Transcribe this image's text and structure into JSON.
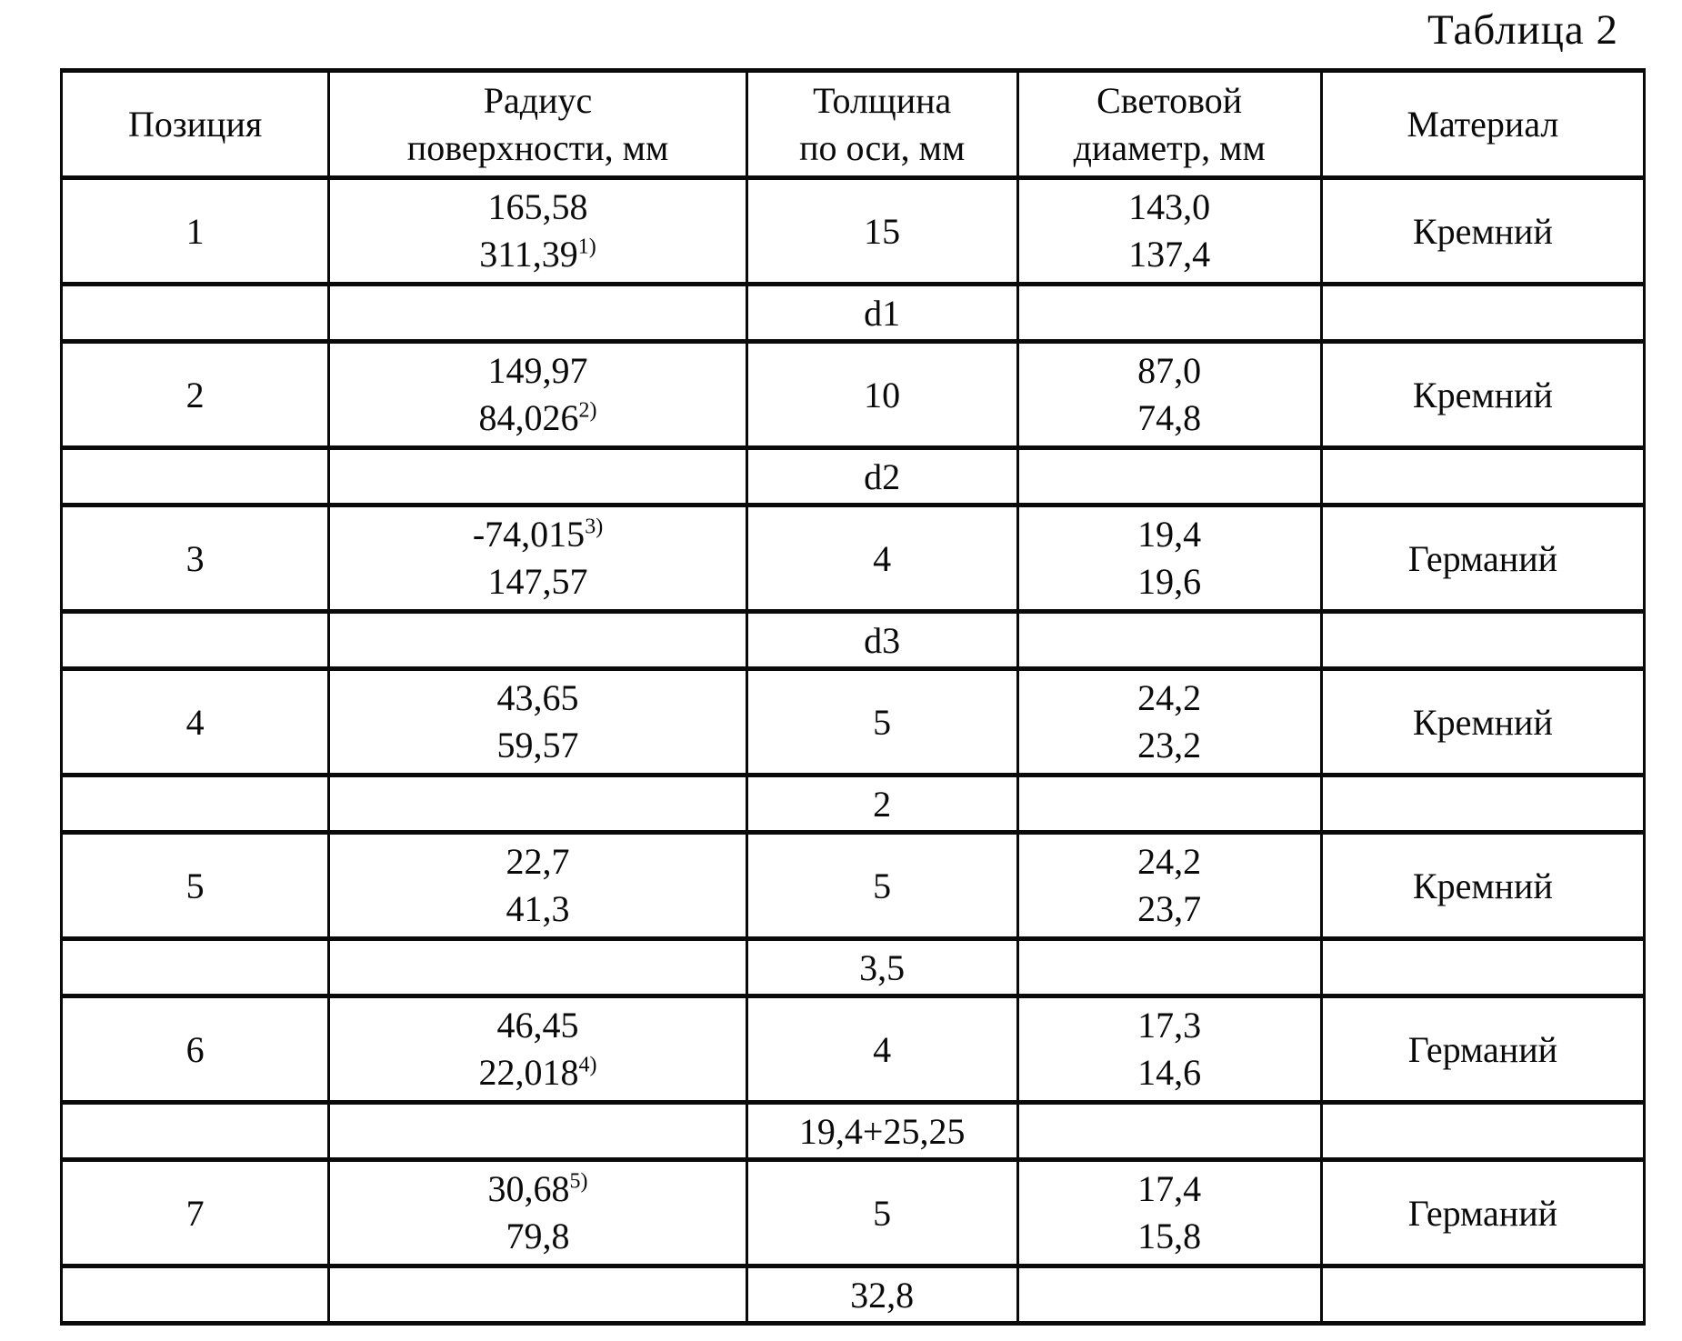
{
  "title": "Таблица 2",
  "colors": {
    "ink": "#0a0a0a",
    "background": "#ffffff"
  },
  "table": {
    "headers": [
      {
        "line1": "Позиция"
      },
      {
        "line1": "Радиус",
        "line2": "поверхности, мм"
      },
      {
        "line1": "Толщина",
        "line2": "по оси, мм"
      },
      {
        "line1": "Световой",
        "line2": "диаметр, мм"
      },
      {
        "line1": "Материал"
      }
    ],
    "rows": [
      {
        "kind": "data",
        "position": "1",
        "radius": [
          {
            "text": "165,58"
          },
          {
            "text": "311,39",
            "sup": "1)"
          }
        ],
        "thickness": "15",
        "diameter": [
          "143,0",
          "137,4"
        ],
        "material": "Кремний"
      },
      {
        "kind": "spacer",
        "thickness": "d1"
      },
      {
        "kind": "data",
        "position": "2",
        "radius": [
          {
            "text": "149,97"
          },
          {
            "text": "84,026",
            "sup": "2)"
          }
        ],
        "thickness": "10",
        "diameter": [
          "87,0",
          "74,8"
        ],
        "material": "Кремний"
      },
      {
        "kind": "spacer",
        "thickness": "d2"
      },
      {
        "kind": "data",
        "position": "3",
        "radius": [
          {
            "text": "-74,015",
            "sup": "3)"
          },
          {
            "text": "147,57"
          }
        ],
        "thickness": "4",
        "diameter": [
          "19,4",
          "19,6"
        ],
        "material": "Германий"
      },
      {
        "kind": "spacer",
        "thickness": "d3"
      },
      {
        "kind": "data",
        "position": "4",
        "radius": [
          {
            "text": "43,65"
          },
          {
            "text": "59,57"
          }
        ],
        "thickness": "5",
        "diameter": [
          "24,2",
          "23,2"
        ],
        "material": "Кремний"
      },
      {
        "kind": "spacer",
        "thickness": "2"
      },
      {
        "kind": "data",
        "position": "5",
        "radius": [
          {
            "text": "22,7"
          },
          {
            "text": "41,3"
          }
        ],
        "thickness": "5",
        "diameter": [
          "24,2",
          "23,7"
        ],
        "material": "Кремний"
      },
      {
        "kind": "spacer",
        "thickness": "3,5"
      },
      {
        "kind": "data",
        "position": "6",
        "radius": [
          {
            "text": "46,45"
          },
          {
            "text": "22,018",
            "sup": "4)"
          }
        ],
        "thickness": "4",
        "diameter": [
          "17,3",
          "14,6"
        ],
        "material": "Германий"
      },
      {
        "kind": "spacer",
        "thickness": "19,4+25,25"
      },
      {
        "kind": "data",
        "position": "7",
        "radius": [
          {
            "text": "30,68",
            "sup": "5)"
          },
          {
            "text": "79,8"
          }
        ],
        "thickness": "5",
        "diameter": [
          "17,4",
          "15,8"
        ],
        "material": "Германий"
      },
      {
        "kind": "spacer",
        "thickness": "32,8"
      }
    ]
  }
}
